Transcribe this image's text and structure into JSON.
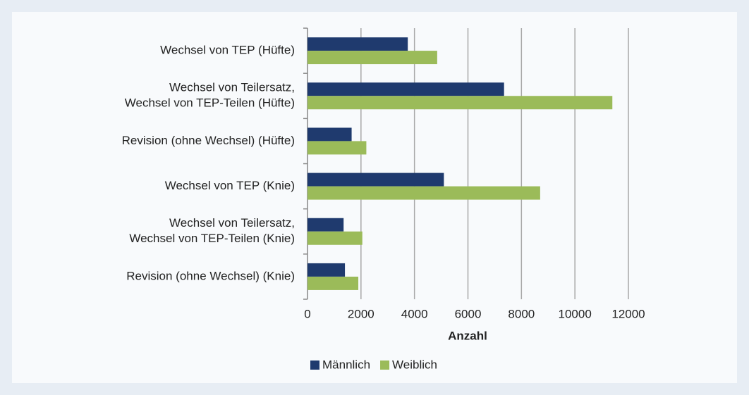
{
  "chart_data": {
    "type": "bar",
    "orientation": "horizontal",
    "categories": [
      "Wechsel von TEP (Hüfte)",
      "Wechsel von Teilersatz,\nWechsel von TEP-Teilen (Hüfte)",
      "Revision (ohne Wechsel) (Hüfte)",
      "Wechsel von TEP (Knie)",
      "Wechsel von Teilersatz,\nWechsel von TEP-Teilen (Knie)",
      "Revision (ohne Wechsel) (Knie)"
    ],
    "series": [
      {
        "name": "Männlich",
        "color": "#1f3a6e",
        "values": [
          3750,
          7350,
          1650,
          5100,
          1350,
          1400
        ]
      },
      {
        "name": "Weiblich",
        "color": "#9bbb59",
        "values": [
          4850,
          11400,
          2200,
          8700,
          2050,
          1900
        ]
      }
    ],
    "xlabel": "Anzahl",
    "xlim": [
      0,
      12000
    ],
    "xticks": [
      0,
      2000,
      4000,
      6000,
      8000,
      10000,
      12000
    ],
    "grid": true,
    "legend": "bottom"
  }
}
